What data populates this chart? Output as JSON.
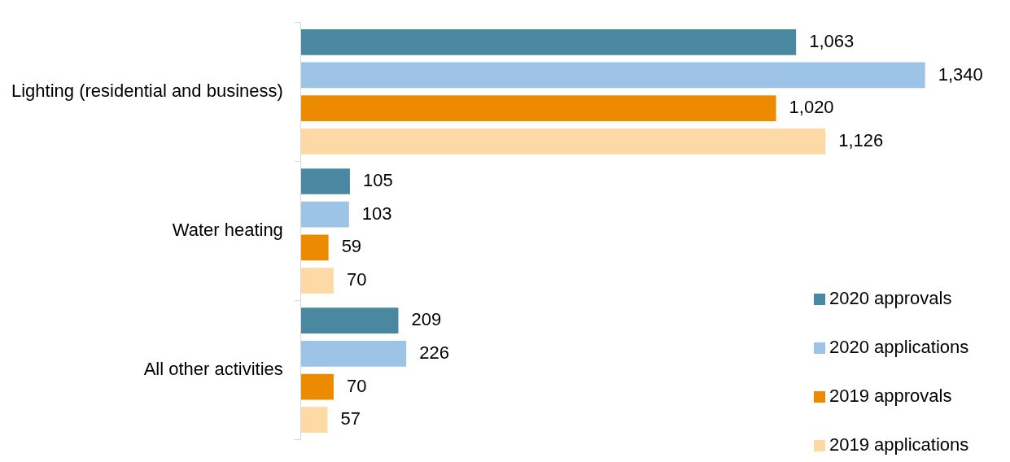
{
  "chart_data": {
    "type": "bar",
    "orientation": "horizontal",
    "categories": [
      "Lighting (residential and business)",
      "Water heating",
      "All other activities"
    ],
    "series": [
      {
        "name": "2020 approvals",
        "color": "#4a88a2",
        "values": [
          1063,
          105,
          209
        ],
        "value_labels": [
          "1,063",
          "105",
          "209"
        ]
      },
      {
        "name": "2020 applications",
        "color": "#9dc3e6",
        "values": [
          1340,
          103,
          226
        ],
        "value_labels": [
          "1,340",
          "103",
          "226"
        ]
      },
      {
        "name": "2019 approvals",
        "color": "#ed8b00",
        "values": [
          1020,
          59,
          70
        ],
        "value_labels": [
          "1,020",
          "59",
          "70"
        ]
      },
      {
        "name": "2019 applications",
        "color": "#fdd9a5",
        "values": [
          1126,
          70,
          57
        ],
        "value_labels": [
          "1,126",
          "70",
          "57"
        ]
      }
    ],
    "legend": "bottom right"
  }
}
